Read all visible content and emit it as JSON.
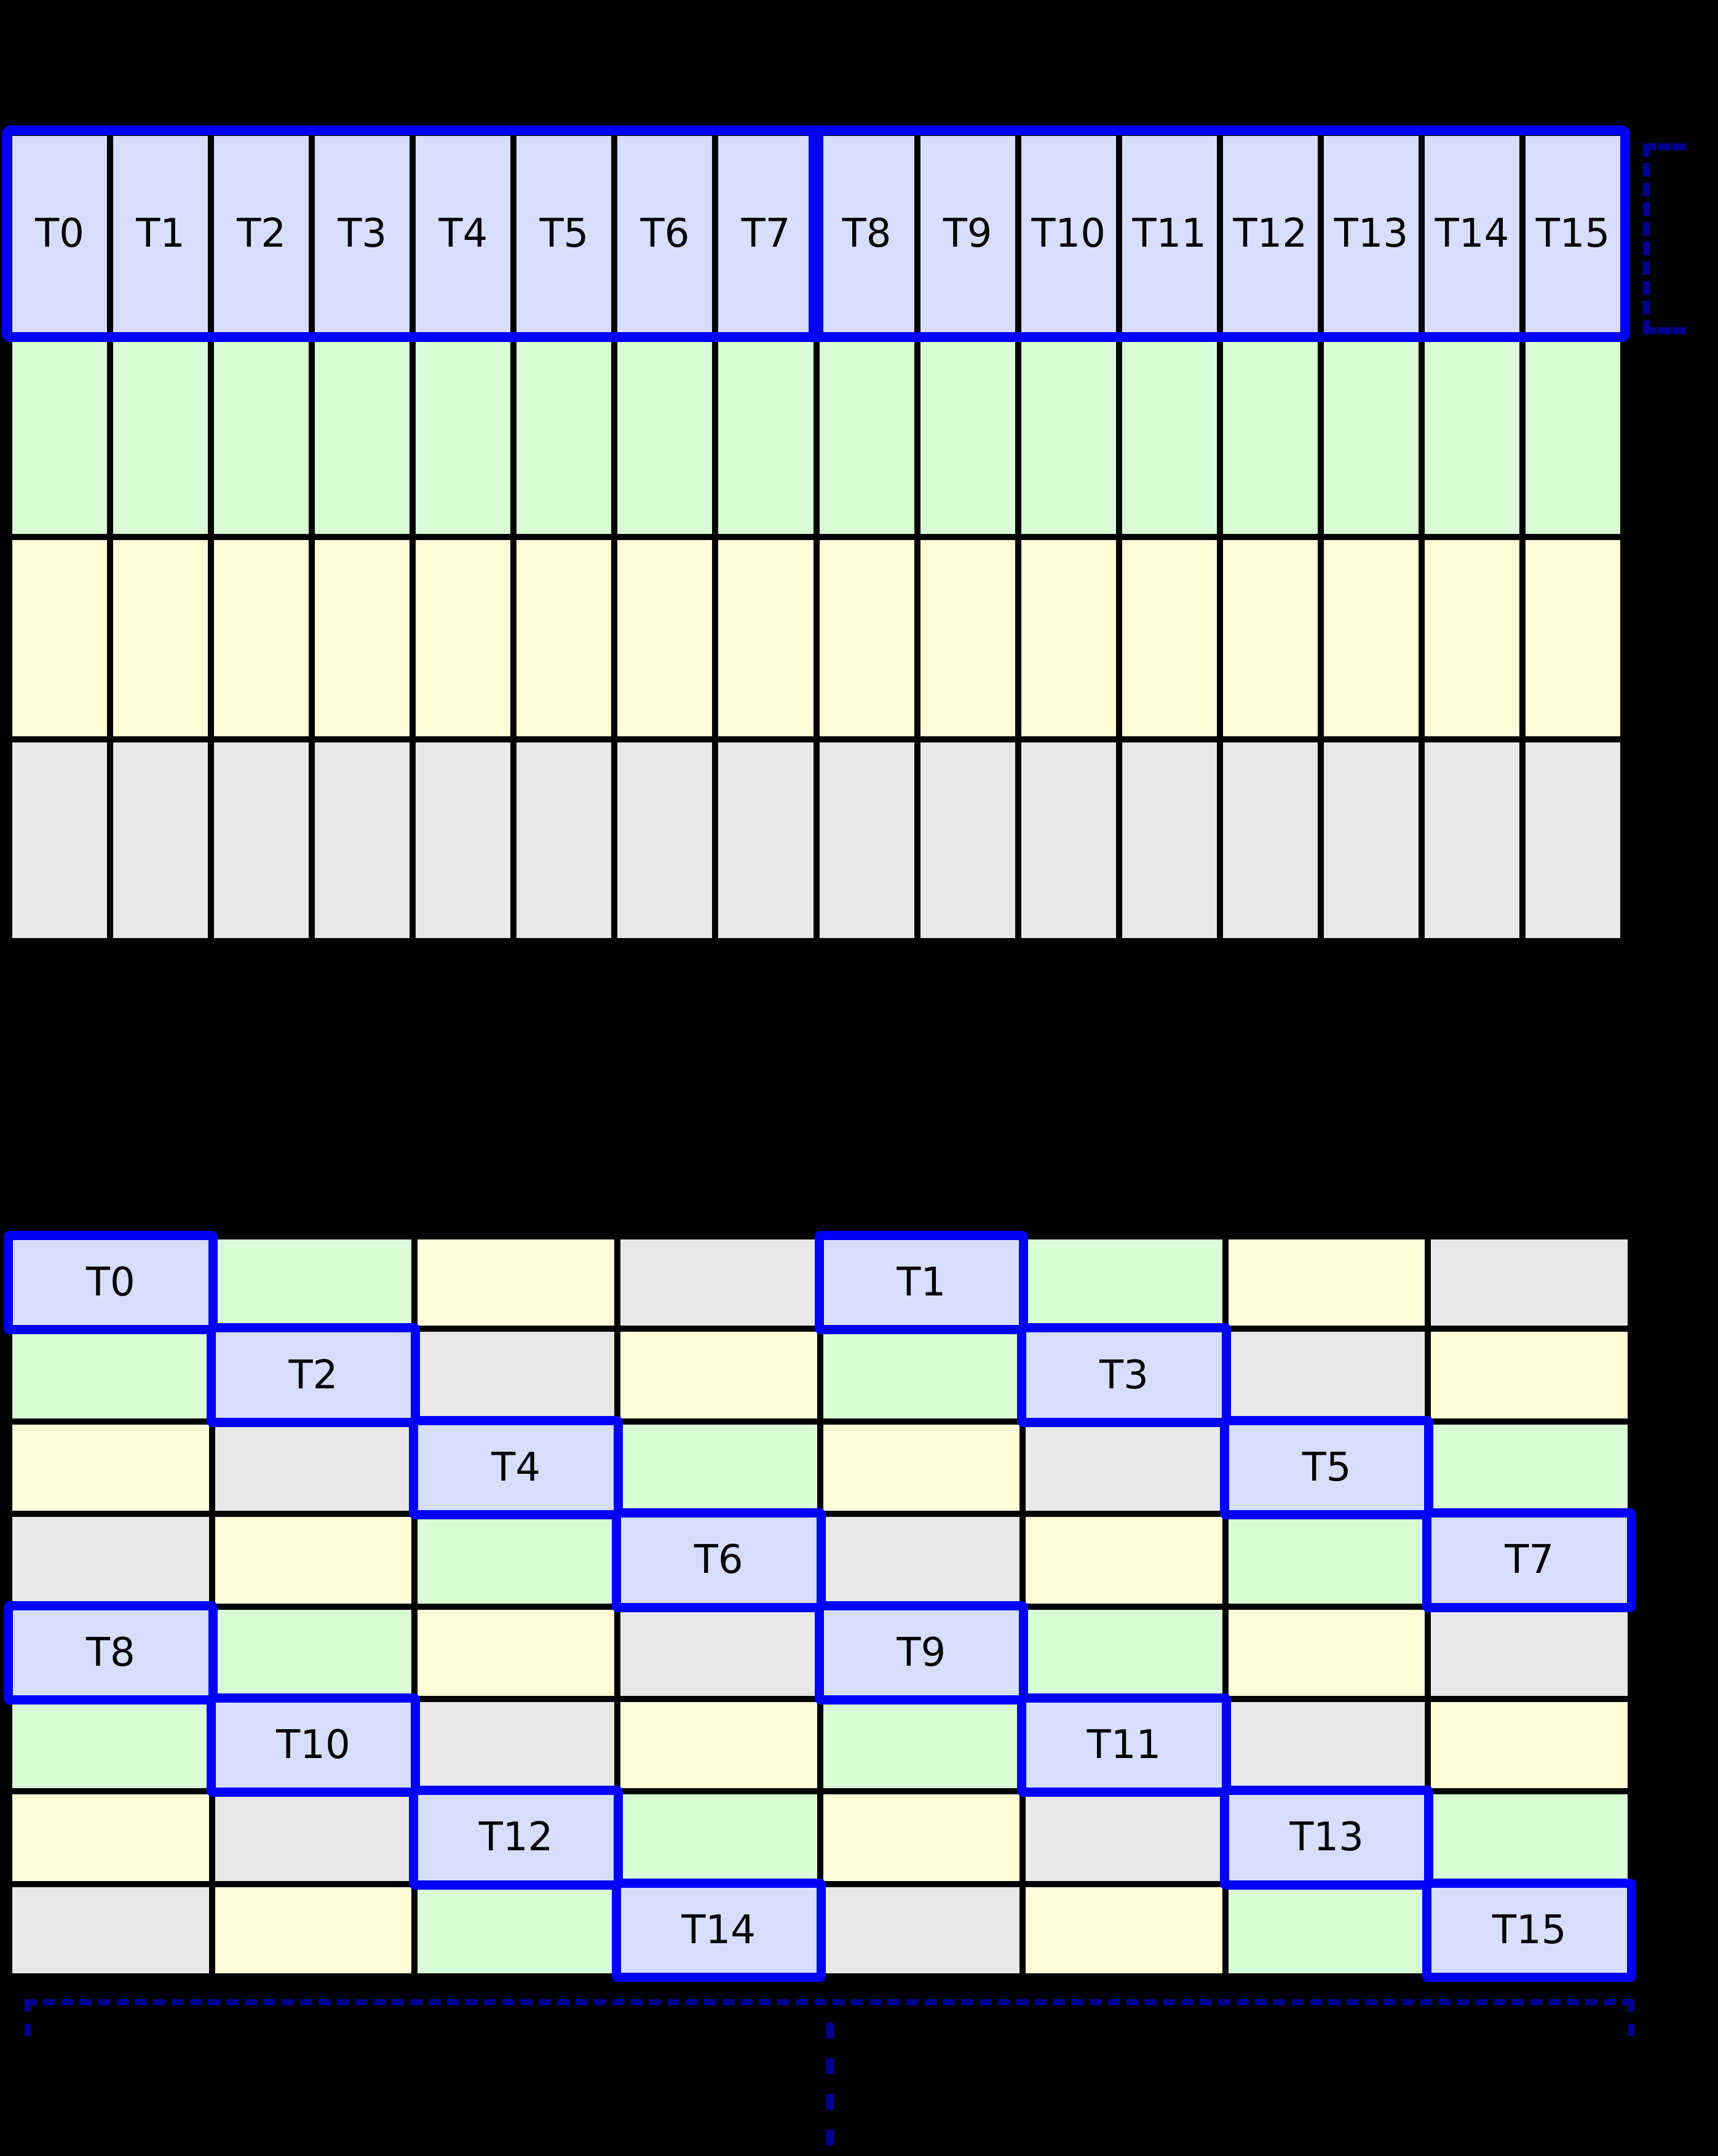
{
  "diagram": {
    "background": "#000000",
    "colors": {
      "thread_cell": "#d6defb",
      "green_cell": "#d9fcd7",
      "yellow_cell": "#fdfdd8",
      "gray_cell": "#e8e8e8",
      "grid_line": "#000000",
      "highlight_border": "#0000fa",
      "bracket_dashed": "#000090",
      "label_color": "#000000"
    },
    "top_grid": {
      "columns": 16,
      "thread_labels": [
        "T0",
        "T1",
        "T2",
        "T3",
        "T4",
        "T5",
        "T6",
        "T7",
        "T8",
        "T9",
        "T10",
        "T11",
        "T12",
        "T13",
        "T14",
        "T15"
      ],
      "rows": [
        {
          "name": "thread-row",
          "color": "t"
        },
        {
          "name": "green-row",
          "color": "g"
        },
        {
          "name": "yellow-row",
          "color": "y"
        },
        {
          "name": "gray-row",
          "color": "e"
        }
      ],
      "warp_groups": [
        "T0-T7",
        "T8-T15"
      ]
    },
    "bottom_grid": {
      "columns": 8,
      "rows": [
        [
          "t:T0",
          "g",
          "y",
          "e",
          "t:T1",
          "g",
          "y",
          "e"
        ],
        [
          "g",
          "t:T2",
          "e",
          "y",
          "g",
          "t:T3",
          "e",
          "y"
        ],
        [
          "y",
          "e",
          "t:T4",
          "g",
          "y",
          "e",
          "t:T5",
          "g"
        ],
        [
          "e",
          "y",
          "g",
          "t:T6",
          "e",
          "y",
          "g",
          "t:T7"
        ],
        [
          "t:T8",
          "g",
          "y",
          "e",
          "t:T9",
          "g",
          "y",
          "e"
        ],
        [
          "g",
          "t:T10",
          "e",
          "y",
          "g",
          "t:T11",
          "e",
          "y"
        ],
        [
          "y",
          "e",
          "t:T12",
          "g",
          "y",
          "e",
          "t:T13",
          "g"
        ],
        [
          "e",
          "y",
          "g",
          "t:T14",
          "e",
          "y",
          "g",
          "t:T15"
        ]
      ]
    }
  }
}
